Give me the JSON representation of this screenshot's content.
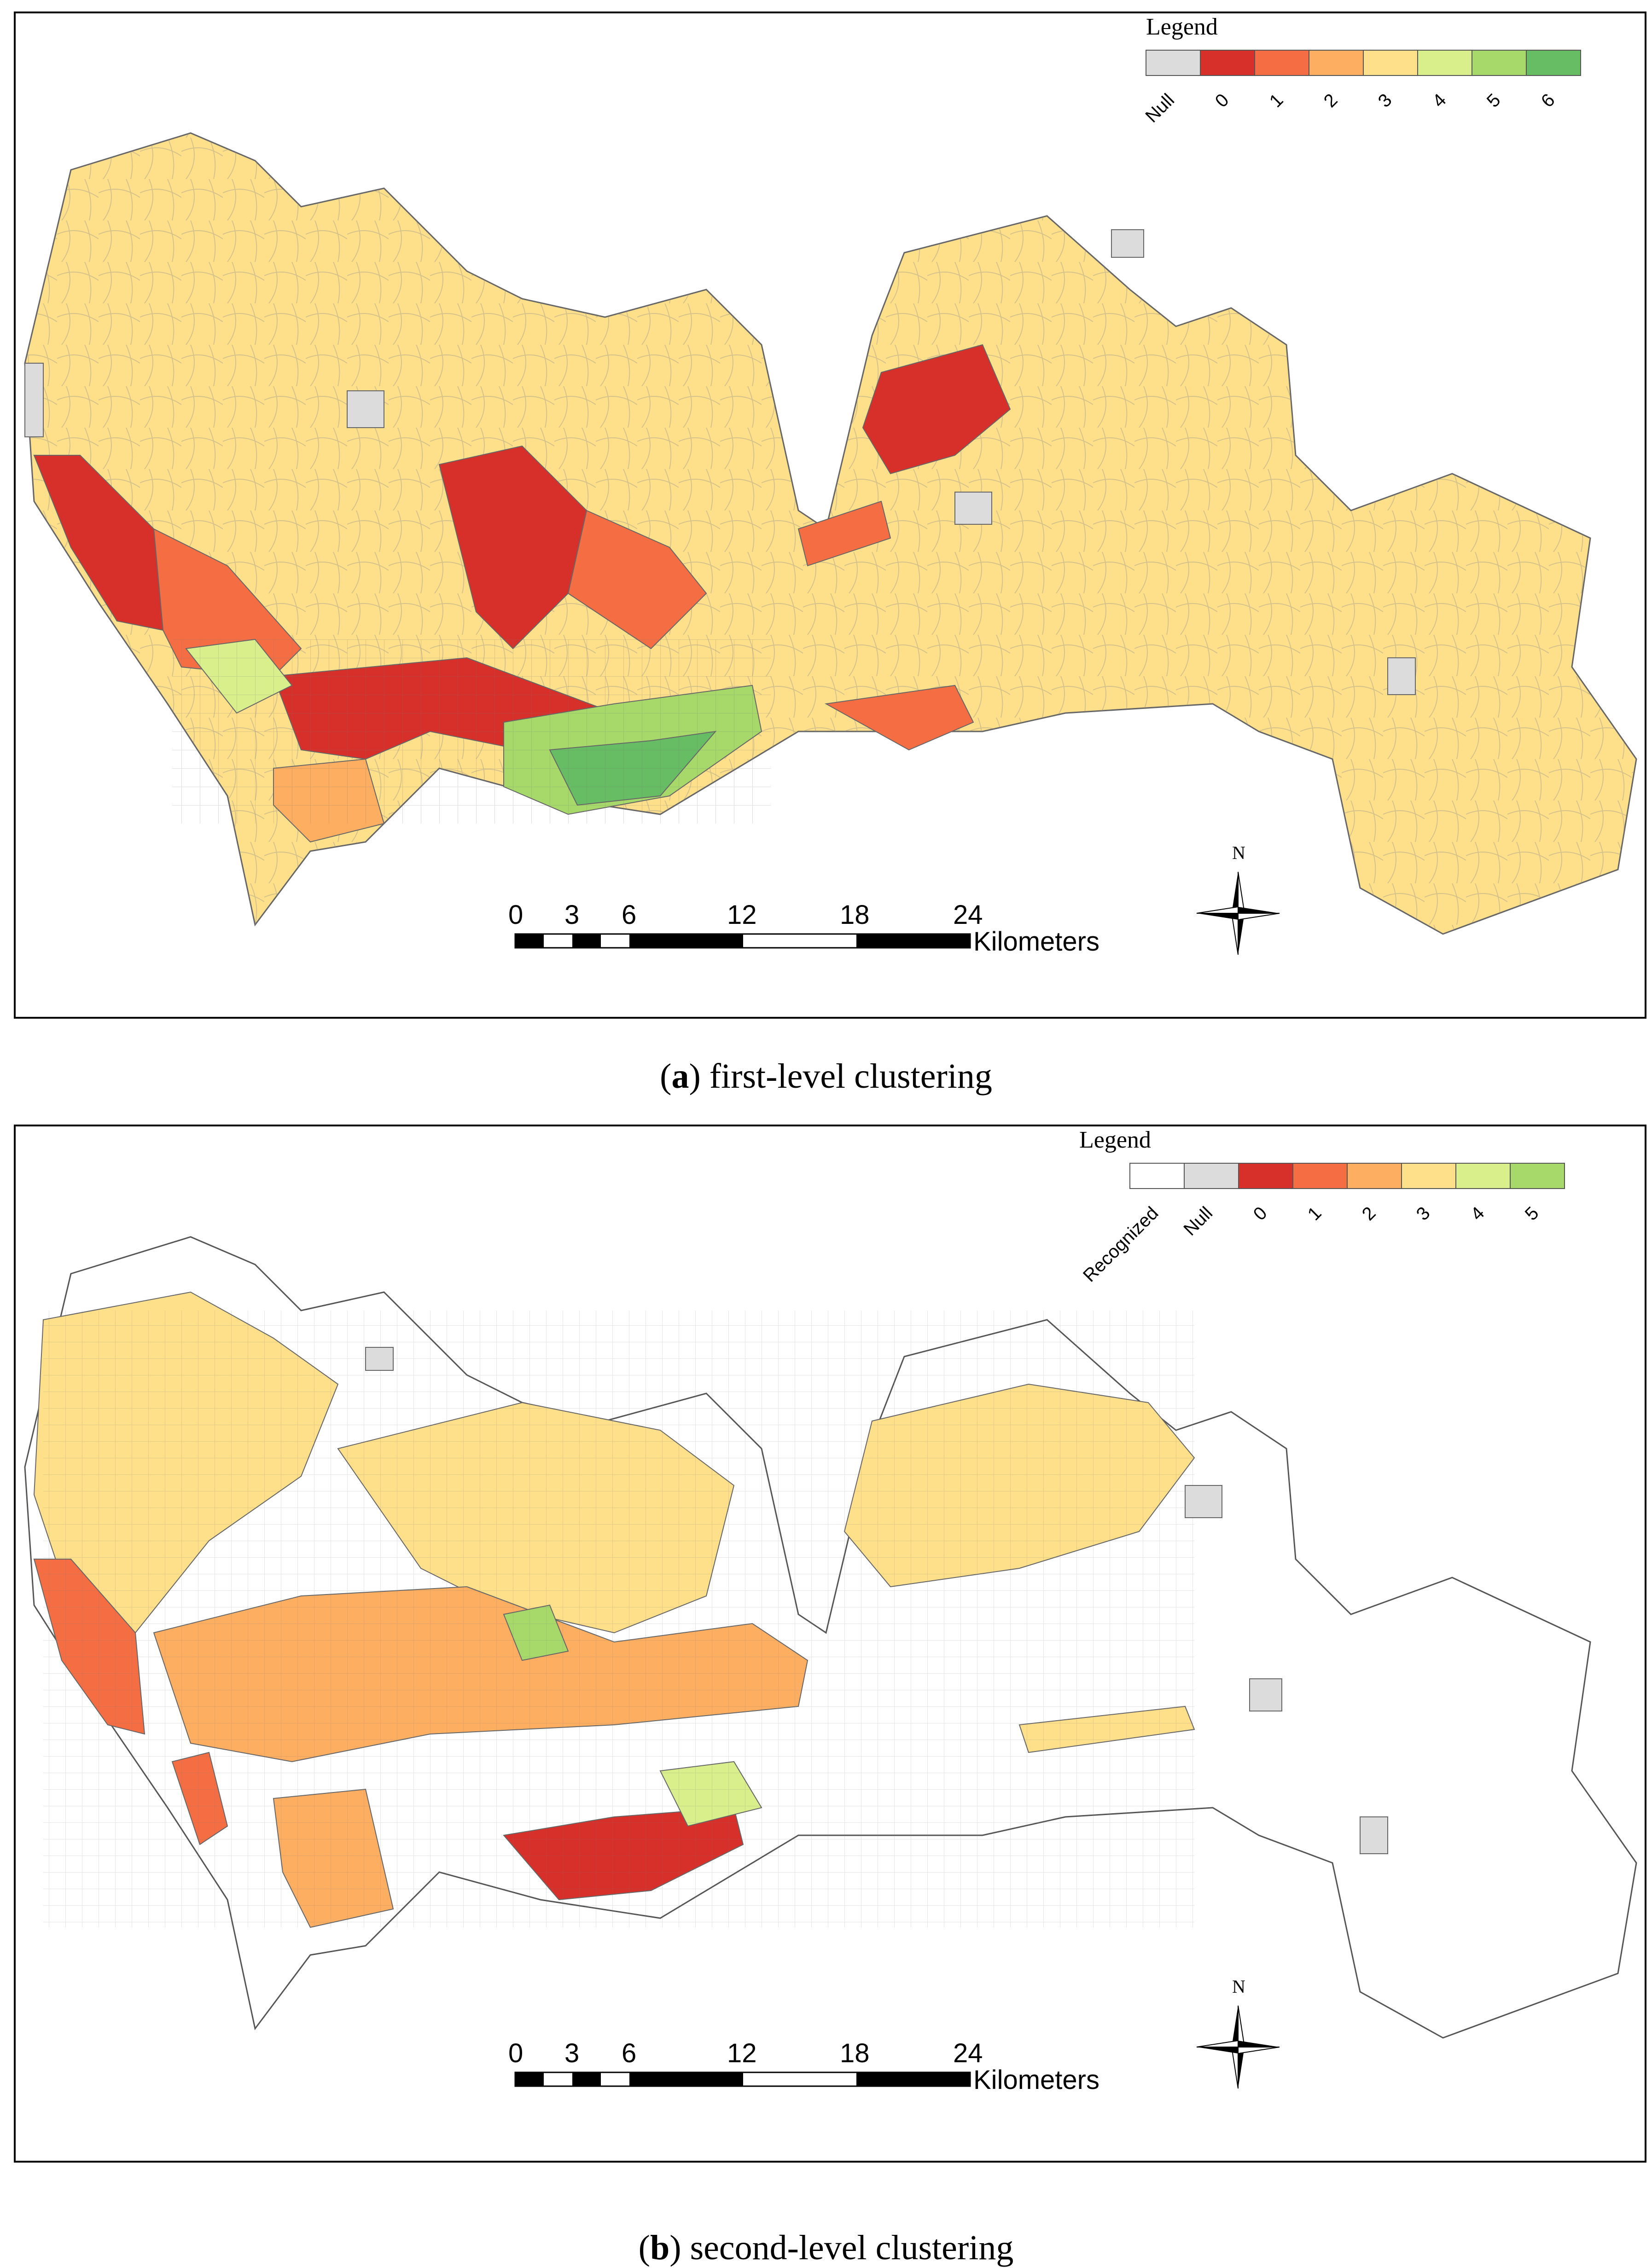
{
  "panel_a": {
    "legend_title": "Legend",
    "legend": [
      {
        "label": "Null",
        "color": "#dcdcdc"
      },
      {
        "label": "0",
        "color": "#d7302a"
      },
      {
        "label": "1",
        "color": "#f46d43"
      },
      {
        "label": "2",
        "color": "#fdae61"
      },
      {
        "label": "3",
        "color": "#fee08b"
      },
      {
        "label": "4",
        "color": "#d9ef8b"
      },
      {
        "label": "5",
        "color": "#a6d96a"
      },
      {
        "label": "6",
        "color": "#66bd63"
      }
    ],
    "caption_letter": "a",
    "caption_text": ") first-level clustering"
  },
  "panel_b": {
    "legend_title": "Legend",
    "legend": [
      {
        "label": "Recognized",
        "color": "#ffffff"
      },
      {
        "label": "Null",
        "color": "#dcdcdc"
      },
      {
        "label": "0",
        "color": "#d7302a"
      },
      {
        "label": "1",
        "color": "#f46d43"
      },
      {
        "label": "2",
        "color": "#fdae61"
      },
      {
        "label": "3",
        "color": "#fee08b"
      },
      {
        "label": "4",
        "color": "#d9ef8b"
      },
      {
        "label": "5",
        "color": "#a6d96a"
      }
    ],
    "caption_letter": "b",
    "caption_text": ") second-level clustering"
  },
  "scale_bar": {
    "ticks": [
      "0",
      "3",
      "6",
      "12",
      "18",
      "24"
    ],
    "unit": "Kilometers"
  },
  "north_arrow": {
    "label": "N"
  }
}
